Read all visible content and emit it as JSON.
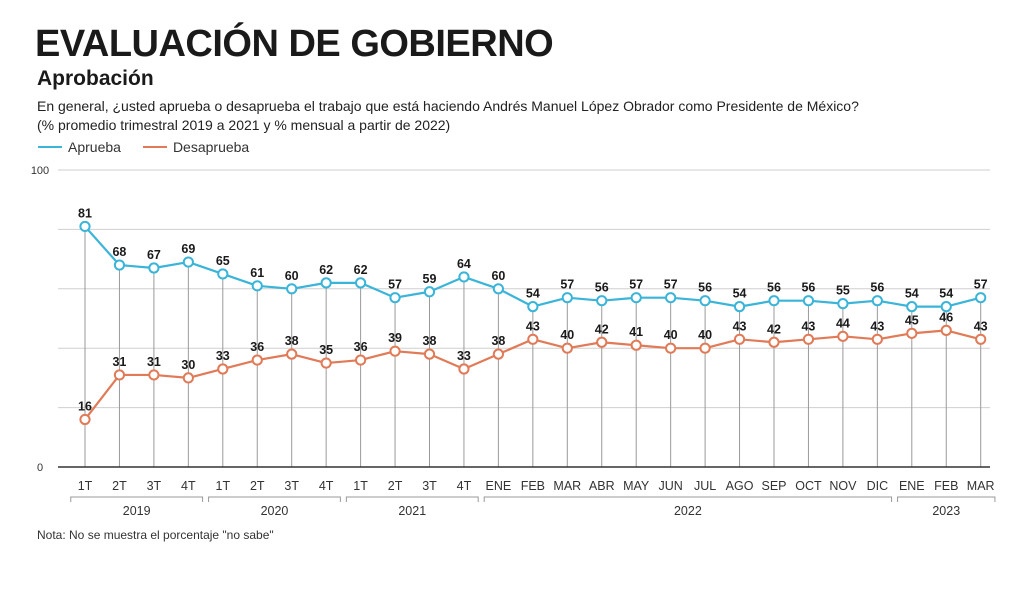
{
  "header": {
    "title": "EVALUACIÓN DE GOBIERNO",
    "subtitle": "Aprobación",
    "question_line1": "En general, ¿usted aprueba o desaprueba el trabajo que está haciendo Andrés Manuel López Obrador como Presidente de México?",
    "question_line2": "(% promedio trimestral 2019 a 2021 y % mensual a partir de 2022)"
  },
  "note": "Nota: No se muestra el porcentaje \"no sabe\"",
  "colors": {
    "approve": "#3ab4d8",
    "disapprove": "#e07a57",
    "axis": "#333333",
    "grid": "#cfcfcf"
  },
  "chart_data": {
    "type": "line",
    "ylim": [
      0,
      100
    ],
    "yticks": [
      "0",
      "100"
    ],
    "grid": true,
    "legend_position": "top-left",
    "categories": [
      "1T",
      "2T",
      "3T",
      "4T",
      "1T",
      "2T",
      "3T",
      "4T",
      "1T",
      "2T",
      "3T",
      "4T",
      "ENE",
      "FEB",
      "MAR",
      "ABR",
      "MAY",
      "JUN",
      "JUL",
      "AGO",
      "SEP",
      "OCT",
      "NOV",
      "DIC",
      "ENE",
      "FEB",
      "MAR"
    ],
    "groups": [
      {
        "label": "2019",
        "count": 4
      },
      {
        "label": "2020",
        "count": 4
      },
      {
        "label": "2021",
        "count": 4
      },
      {
        "label": "2022",
        "count": 12
      },
      {
        "label": "2023",
        "count": 3
      }
    ],
    "series": [
      {
        "name": "Aprueba",
        "color": "#3ab4d8",
        "values": [
          81,
          68,
          67,
          69,
          65,
          61,
          60,
          62,
          62,
          57,
          59,
          64,
          60,
          54,
          57,
          56,
          57,
          57,
          56,
          54,
          56,
          56,
          55,
          56,
          54,
          54,
          57
        ]
      },
      {
        "name": "Desaprueba",
        "color": "#e07a57",
        "values": [
          16,
          31,
          31,
          30,
          33,
          36,
          38,
          35,
          36,
          39,
          38,
          33,
          38,
          43,
          40,
          42,
          41,
          40,
          40,
          43,
          42,
          43,
          44,
          43,
          45,
          46,
          43
        ]
      }
    ]
  }
}
